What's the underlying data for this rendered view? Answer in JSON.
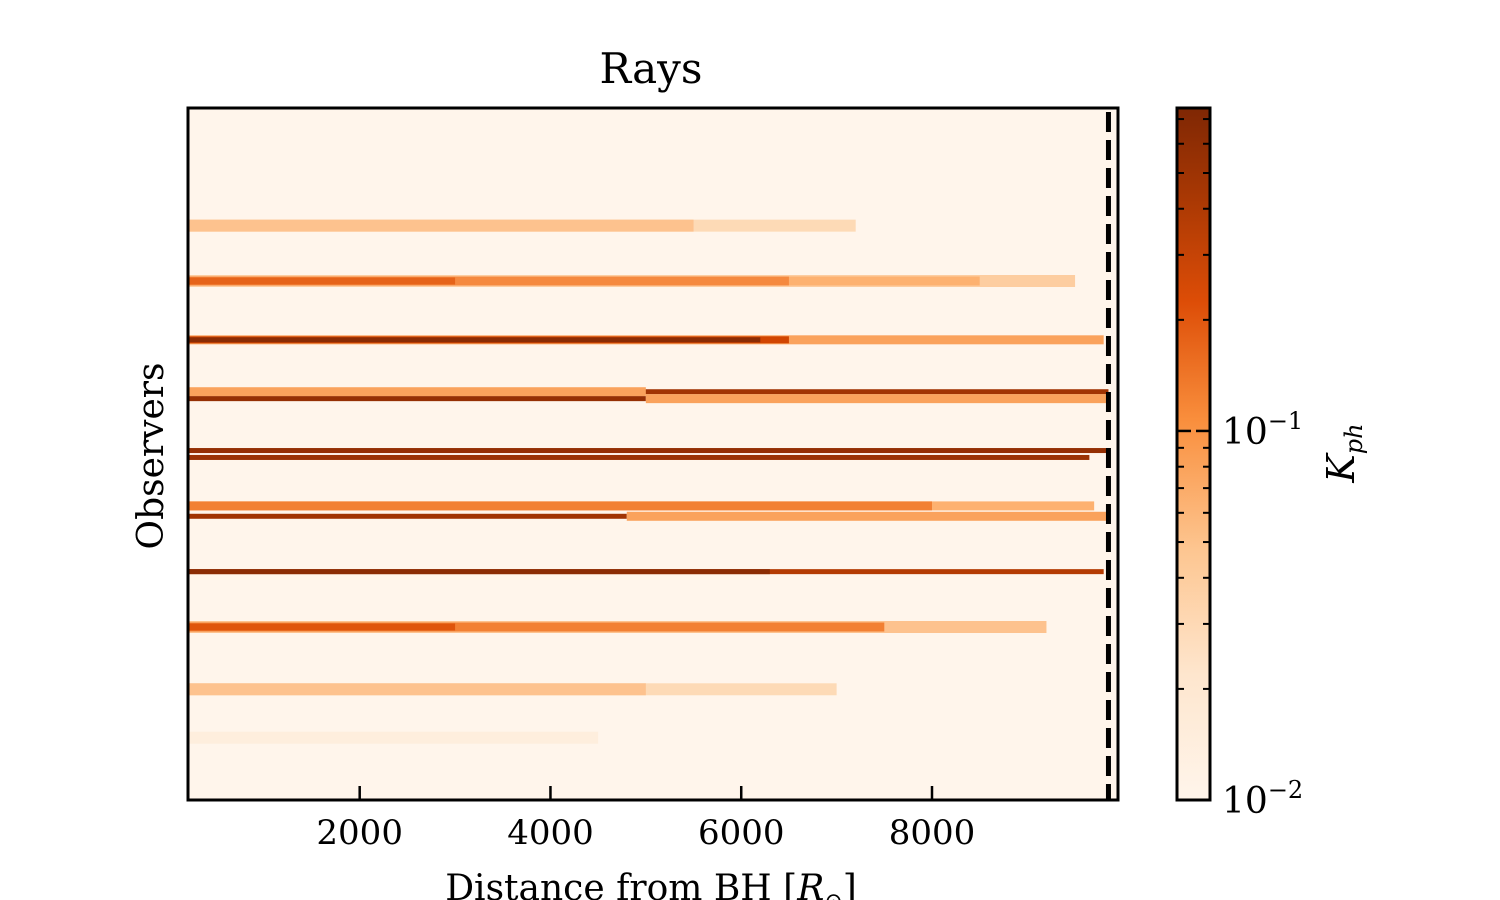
{
  "chart_data": {
    "type": "heatmap",
    "title": "Rays",
    "xlabel": "Distance from BH [R_⊙]",
    "xlabel_main": "Distance from BH [",
    "xlabel_symbol": "R",
    "xlabel_sub": "⊙",
    "xlabel_close": "]",
    "ylabel": "Observers",
    "xlim": [
      200,
      9950
    ],
    "x_ticks": [
      2000,
      4000,
      6000,
      8000
    ],
    "x_tick_labels": [
      "2000",
      "4000",
      "6000",
      "8000"
    ],
    "y_ticks": [],
    "dashed_line_x": 9850,
    "colorbar": {
      "label": "K_ph",
      "label_main": "K",
      "label_sub": "ph",
      "scale": "log",
      "range": [
        0.01,
        0.75
      ],
      "ticks": [
        0.01,
        0.1
      ],
      "tick_labels": [
        {
          "base": "10",
          "exp": "−2"
        },
        {
          "base": "10",
          "exp": "−1"
        }
      ],
      "colormap": "Oranges",
      "colors": [
        "#fff5eb",
        "#fdd9b4",
        "#fdae6b",
        "#f17a2c",
        "#d94801",
        "#a63603",
        "#7f2704"
      ]
    },
    "rays": [
      {
        "y": 0.83,
        "segments": [
          {
            "x0": 200,
            "x1": 7200,
            "k": 0.02
          },
          {
            "x0": 200,
            "x1": 5500,
            "k": 0.03
          }
        ]
      },
      {
        "y": 0.75,
        "segments": [
          {
            "x0": 200,
            "x1": 9500,
            "k": 0.025
          },
          {
            "x0": 200,
            "x1": 8500,
            "k": 0.04
          },
          {
            "x0": 200,
            "x1": 6500,
            "k": 0.07
          },
          {
            "x0": 200,
            "x1": 3000,
            "k": 0.12
          }
        ]
      },
      {
        "y": 0.665,
        "segments": [
          {
            "x0": 200,
            "x1": 9800,
            "k": 0.05
          },
          {
            "x0": 200,
            "x1": 6500,
            "k": 0.2
          },
          {
            "x0": 200,
            "x1": 6200,
            "k": 0.6
          }
        ]
      },
      {
        "y": 0.59,
        "segments": [
          {
            "x0": 200,
            "x1": 9850,
            "k": 0.4
          },
          {
            "x0": 200,
            "x1": 5000,
            "k": 0.05
          }
        ]
      },
      {
        "y": 0.58,
        "segments": [
          {
            "x0": 200,
            "x1": 5000,
            "k": 0.5
          },
          {
            "x0": 5000,
            "x1": 9850,
            "k": 0.05
          }
        ]
      },
      {
        "y": 0.505,
        "segments": [
          {
            "x0": 200,
            "x1": 9850,
            "k": 0.5
          }
        ]
      },
      {
        "y": 0.495,
        "segments": [
          {
            "x0": 200,
            "x1": 9650,
            "k": 0.45
          }
        ]
      },
      {
        "y": 0.425,
        "segments": [
          {
            "x0": 200,
            "x1": 9700,
            "k": 0.04
          },
          {
            "x0": 200,
            "x1": 8000,
            "k": 0.08
          }
        ]
      },
      {
        "y": 0.41,
        "segments": [
          {
            "x0": 200,
            "x1": 4800,
            "k": 0.4
          },
          {
            "x0": 4800,
            "x1": 9850,
            "k": 0.05
          }
        ]
      },
      {
        "y": 0.33,
        "segments": [
          {
            "x0": 200,
            "x1": 9800,
            "k": 0.3
          },
          {
            "x0": 200,
            "x1": 6300,
            "k": 0.6
          }
        ]
      },
      {
        "y": 0.25,
        "segments": [
          {
            "x0": 200,
            "x1": 9200,
            "k": 0.03
          },
          {
            "x0": 200,
            "x1": 7500,
            "k": 0.08
          },
          {
            "x0": 200,
            "x1": 3000,
            "k": 0.15
          }
        ]
      },
      {
        "y": 0.16,
        "segments": [
          {
            "x0": 200,
            "x1": 7000,
            "k": 0.02
          },
          {
            "x0": 200,
            "x1": 5000,
            "k": 0.03
          }
        ]
      },
      {
        "y": 0.09,
        "segments": [
          {
            "x0": 200,
            "x1": 4500,
            "k": 0.012
          }
        ]
      }
    ]
  }
}
